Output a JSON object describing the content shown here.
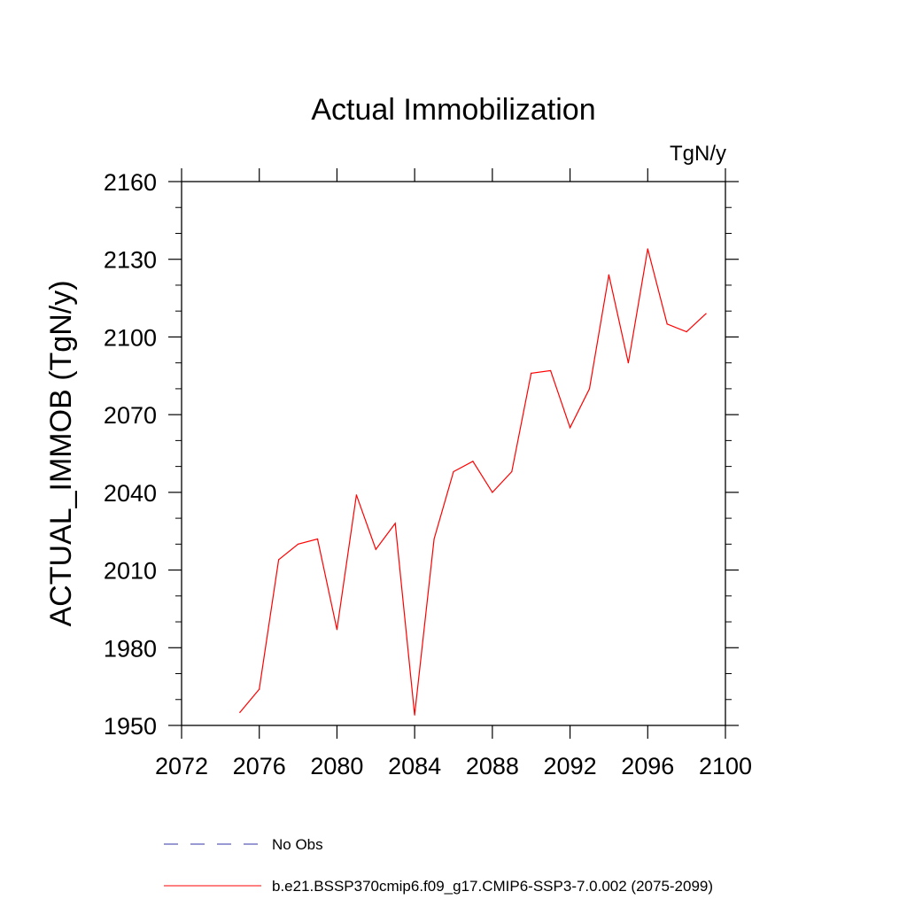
{
  "chart_data": {
    "type": "line",
    "title": "Actual Immobilization",
    "units_label": "TgN/y",
    "ylabel": "ACTUAL_IMMOB  (TgN/y)",
    "xlabel": "",
    "xlim": [
      2072,
      2100
    ],
    "ylim": [
      1950,
      2160
    ],
    "x_ticks": [
      2072,
      2076,
      2080,
      2084,
      2088,
      2092,
      2096,
      2100
    ],
    "y_ticks": [
      1950,
      1980,
      2010,
      2040,
      2070,
      2100,
      2130,
      2160
    ],
    "grid": false,
    "legend_position": "bottom",
    "series": [
      {
        "name": "b.e21.BSSP370cmip6.f09_g17.CMIP6-SSP3-7.0.002 (2075-2099)",
        "color": "#ff0000",
        "line_style": "solid",
        "x": [
          2075,
          2076,
          2077,
          2078,
          2079,
          2080,
          2081,
          2082,
          2083,
          2084,
          2085,
          2086,
          2087,
          2088,
          2089,
          2090,
          2091,
          2092,
          2093,
          2094,
          2095,
          2096,
          2097,
          2098,
          2099
        ],
        "values": [
          1955,
          1964,
          2014,
          2020,
          2022,
          1987,
          2039,
          2018,
          2028,
          1954,
          2022,
          2048,
          2052,
          2040,
          2048,
          2086,
          2087,
          2065,
          2080,
          2124,
          2090,
          2134,
          2105,
          2102,
          2109
        ]
      }
    ],
    "legend": [
      {
        "label": "No Obs",
        "color": "#3333aa",
        "line_style": "dashed"
      },
      {
        "label": "b.e21.BSSP370cmip6.f09_g17.CMIP6-SSP3-7.0.002 (2075-2099)",
        "color": "#ff0000",
        "line_style": "solid"
      }
    ]
  }
}
